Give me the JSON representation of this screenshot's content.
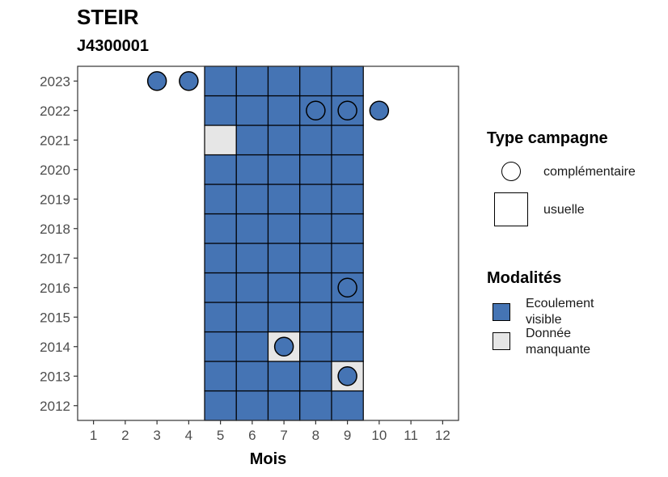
{
  "title": "STEIR",
  "subtitle": "J4300001",
  "chart_data": {
    "type": "heatmap",
    "xlabel": "Mois",
    "ylabel": "",
    "x_ticks": [
      1,
      2,
      3,
      4,
      5,
      6,
      7,
      8,
      9,
      10,
      11,
      12
    ],
    "y_ticks": [
      2012,
      2013,
      2014,
      2015,
      2016,
      2017,
      2018,
      2019,
      2020,
      2021,
      2022,
      2023
    ],
    "xlim": [
      0.5,
      12.5
    ],
    "ylim": [
      2011.5,
      2023.5
    ],
    "grid": false,
    "colors": {
      "Ecoulement visible": "#4574B4",
      "Donnée manquante": "#E6E6E6"
    },
    "cells": [
      {
        "month": 5,
        "year": 2012,
        "modalite": "Ecoulement visible",
        "type": "usuelle"
      },
      {
        "month": 6,
        "year": 2012,
        "modalite": "Ecoulement visible",
        "type": "usuelle"
      },
      {
        "month": 7,
        "year": 2012,
        "modalite": "Ecoulement visible",
        "type": "usuelle"
      },
      {
        "month": 8,
        "year": 2012,
        "modalite": "Ecoulement visible",
        "type": "usuelle"
      },
      {
        "month": 9,
        "year": 2012,
        "modalite": "Ecoulement visible",
        "type": "usuelle"
      },
      {
        "month": 5,
        "year": 2013,
        "modalite": "Ecoulement visible",
        "type": "usuelle"
      },
      {
        "month": 6,
        "year": 2013,
        "modalite": "Ecoulement visible",
        "type": "usuelle"
      },
      {
        "month": 7,
        "year": 2013,
        "modalite": "Ecoulement visible",
        "type": "usuelle"
      },
      {
        "month": 8,
        "year": 2013,
        "modalite": "Ecoulement visible",
        "type": "usuelle"
      },
      {
        "month": 9,
        "year": 2013,
        "modalite": "Donnée manquante",
        "type": "usuelle"
      },
      {
        "month": 5,
        "year": 2014,
        "modalite": "Ecoulement visible",
        "type": "usuelle"
      },
      {
        "month": 6,
        "year": 2014,
        "modalite": "Ecoulement visible",
        "type": "usuelle"
      },
      {
        "month": 7,
        "year": 2014,
        "modalite": "Donnée manquante",
        "type": "usuelle"
      },
      {
        "month": 8,
        "year": 2014,
        "modalite": "Ecoulement visible",
        "type": "usuelle"
      },
      {
        "month": 9,
        "year": 2014,
        "modalite": "Ecoulement visible",
        "type": "usuelle"
      },
      {
        "month": 5,
        "year": 2015,
        "modalite": "Ecoulement visible",
        "type": "usuelle"
      },
      {
        "month": 6,
        "year": 2015,
        "modalite": "Ecoulement visible",
        "type": "usuelle"
      },
      {
        "month": 7,
        "year": 2015,
        "modalite": "Ecoulement visible",
        "type": "usuelle"
      },
      {
        "month": 8,
        "year": 2015,
        "modalite": "Ecoulement visible",
        "type": "usuelle"
      },
      {
        "month": 9,
        "year": 2015,
        "modalite": "Ecoulement visible",
        "type": "usuelle"
      },
      {
        "month": 5,
        "year": 2016,
        "modalite": "Ecoulement visible",
        "type": "usuelle"
      },
      {
        "month": 6,
        "year": 2016,
        "modalite": "Ecoulement visible",
        "type": "usuelle"
      },
      {
        "month": 7,
        "year": 2016,
        "modalite": "Ecoulement visible",
        "type": "usuelle"
      },
      {
        "month": 8,
        "year": 2016,
        "modalite": "Ecoulement visible",
        "type": "usuelle"
      },
      {
        "month": 9,
        "year": 2016,
        "modalite": "Ecoulement visible",
        "type": "usuelle"
      },
      {
        "month": 5,
        "year": 2017,
        "modalite": "Ecoulement visible",
        "type": "usuelle"
      },
      {
        "month": 6,
        "year": 2017,
        "modalite": "Ecoulement visible",
        "type": "usuelle"
      },
      {
        "month": 7,
        "year": 2017,
        "modalite": "Ecoulement visible",
        "type": "usuelle"
      },
      {
        "month": 8,
        "year": 2017,
        "modalite": "Ecoulement visible",
        "type": "usuelle"
      },
      {
        "month": 9,
        "year": 2017,
        "modalite": "Ecoulement visible",
        "type": "usuelle"
      },
      {
        "month": 5,
        "year": 2018,
        "modalite": "Ecoulement visible",
        "type": "usuelle"
      },
      {
        "month": 6,
        "year": 2018,
        "modalite": "Ecoulement visible",
        "type": "usuelle"
      },
      {
        "month": 7,
        "year": 2018,
        "modalite": "Ecoulement visible",
        "type": "usuelle"
      },
      {
        "month": 8,
        "year": 2018,
        "modalite": "Ecoulement visible",
        "type": "usuelle"
      },
      {
        "month": 9,
        "year": 2018,
        "modalite": "Ecoulement visible",
        "type": "usuelle"
      },
      {
        "month": 5,
        "year": 2019,
        "modalite": "Ecoulement visible",
        "type": "usuelle"
      },
      {
        "month": 6,
        "year": 2019,
        "modalite": "Ecoulement visible",
        "type": "usuelle"
      },
      {
        "month": 7,
        "year": 2019,
        "modalite": "Ecoulement visible",
        "type": "usuelle"
      },
      {
        "month": 8,
        "year": 2019,
        "modalite": "Ecoulement visible",
        "type": "usuelle"
      },
      {
        "month": 9,
        "year": 2019,
        "modalite": "Ecoulement visible",
        "type": "usuelle"
      },
      {
        "month": 5,
        "year": 2020,
        "modalite": "Ecoulement visible",
        "type": "usuelle"
      },
      {
        "month": 6,
        "year": 2020,
        "modalite": "Ecoulement visible",
        "type": "usuelle"
      },
      {
        "month": 7,
        "year": 2020,
        "modalite": "Ecoulement visible",
        "type": "usuelle"
      },
      {
        "month": 8,
        "year": 2020,
        "modalite": "Ecoulement visible",
        "type": "usuelle"
      },
      {
        "month": 9,
        "year": 2020,
        "modalite": "Ecoulement visible",
        "type": "usuelle"
      },
      {
        "month": 5,
        "year": 2021,
        "modalite": "Donnée manquante",
        "type": "usuelle"
      },
      {
        "month": 6,
        "year": 2021,
        "modalite": "Ecoulement visible",
        "type": "usuelle"
      },
      {
        "month": 7,
        "year": 2021,
        "modalite": "Ecoulement visible",
        "type": "usuelle"
      },
      {
        "month": 8,
        "year": 2021,
        "modalite": "Ecoulement visible",
        "type": "usuelle"
      },
      {
        "month": 9,
        "year": 2021,
        "modalite": "Ecoulement visible",
        "type": "usuelle"
      },
      {
        "month": 5,
        "year": 2022,
        "modalite": "Ecoulement visible",
        "type": "usuelle"
      },
      {
        "month": 6,
        "year": 2022,
        "modalite": "Ecoulement visible",
        "type": "usuelle"
      },
      {
        "month": 7,
        "year": 2022,
        "modalite": "Ecoulement visible",
        "type": "usuelle"
      },
      {
        "month": 8,
        "year": 2022,
        "modalite": "Ecoulement visible",
        "type": "usuelle"
      },
      {
        "month": 9,
        "year": 2022,
        "modalite": "Ecoulement visible",
        "type": "usuelle"
      },
      {
        "month": 5,
        "year": 2023,
        "modalite": "Ecoulement visible",
        "type": "usuelle"
      },
      {
        "month": 6,
        "year": 2023,
        "modalite": "Ecoulement visible",
        "type": "usuelle"
      },
      {
        "month": 7,
        "year": 2023,
        "modalite": "Ecoulement visible",
        "type": "usuelle"
      },
      {
        "month": 8,
        "year": 2023,
        "modalite": "Ecoulement visible",
        "type": "usuelle"
      },
      {
        "month": 9,
        "year": 2023,
        "modalite": "Ecoulement visible",
        "type": "usuelle"
      }
    ],
    "points": [
      {
        "month": 3,
        "year": 2023,
        "modalite": "Ecoulement visible",
        "type": "complémentaire"
      },
      {
        "month": 4,
        "year": 2023,
        "modalite": "Ecoulement visible",
        "type": "complémentaire"
      },
      {
        "month": 8,
        "year": 2022,
        "modalite": "Ecoulement visible",
        "type": "complémentaire"
      },
      {
        "month": 9,
        "year": 2022,
        "modalite": "Ecoulement visible",
        "type": "complémentaire"
      },
      {
        "month": 10,
        "year": 2022,
        "modalite": "Ecoulement visible",
        "type": "complémentaire"
      },
      {
        "month": 9,
        "year": 2016,
        "modalite": "Ecoulement visible",
        "type": "complémentaire"
      },
      {
        "month": 7,
        "year": 2014,
        "modalite": "Ecoulement visible",
        "type": "complémentaire"
      },
      {
        "month": 9,
        "year": 2013,
        "modalite": "Ecoulement visible",
        "type": "complémentaire"
      }
    ],
    "legend_position": "right",
    "legends": [
      {
        "title": "Type campagne",
        "items": [
          "complémentaire",
          "usuelle"
        ]
      },
      {
        "title": "Modalités",
        "items": [
          "Ecoulement\nvisible",
          "Donnée\nmanquante"
        ]
      }
    ]
  }
}
